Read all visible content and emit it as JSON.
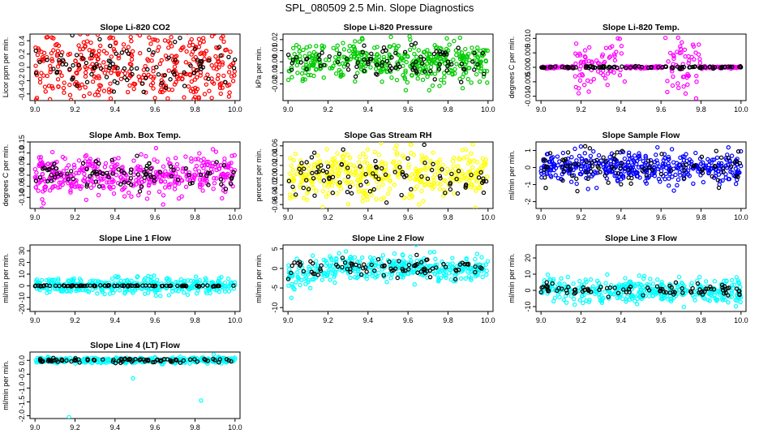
{
  "title": "SPL_080509  2.5 Min. Slope Diagnostics",
  "colors": {
    "red": "#ff0000",
    "green": "#00cc00",
    "magenta": "#ff00ff",
    "yellow": "#ffff00",
    "blue": "#0000ff",
    "cyan": "#00ffff",
    "black": "#000000"
  },
  "chart_data": [
    {
      "type": "scatter",
      "title": "Slope Li-820 CO2",
      "ylabel": "Licor ppm per min.",
      "xlim": [
        9.0,
        10.0
      ],
      "ylim": [
        -0.5,
        0.5
      ],
      "x_ticks": [
        "9.0",
        "9.2",
        "9.4",
        "9.6",
        "9.8",
        "10.0"
      ],
      "y_ticks": [
        -0.4,
        -0.2,
        0.0,
        0.2,
        0.4
      ],
      "y_tick_labels": [
        "-0.4",
        "-0.2",
        "0.0",
        "0.2",
        "0.4"
      ],
      "series": [
        {
          "color": "red",
          "n": 420,
          "x_range": [
            9.0,
            10.0
          ],
          "spread": 0.3
        },
        {
          "color": "black",
          "n": 90,
          "x_range": [
            9.0,
            10.0
          ],
          "spread": 0.2
        }
      ]
    },
    {
      "type": "scatter",
      "title": "Slope Li-820 Pressure",
      "ylabel": "kPa per min.",
      "xlim": [
        9.0,
        10.0
      ],
      "ylim": [
        -0.035,
        0.025
      ],
      "x_ticks": [
        "9.0",
        "9.2",
        "9.4",
        "9.6",
        "9.8",
        "10.0"
      ],
      "y_ticks": [
        -0.02,
        -0.01,
        0.0,
        0.01,
        0.02
      ],
      "y_tick_labels": [
        "-0.02",
        "-0.01",
        "0.00",
        "0.01",
        "0.02"
      ],
      "series": [
        {
          "color": "green",
          "n": 420,
          "x_range": [
            9.0,
            10.0
          ],
          "spread": 0.009
        },
        {
          "color": "black",
          "n": 90,
          "x_range": [
            9.0,
            10.0
          ],
          "spread": 0.007
        }
      ]
    },
    {
      "type": "scatter",
      "title": "Slope Li-820 Temp.",
      "ylabel": "degrees C per min.",
      "xlim": [
        9.0,
        10.0
      ],
      "ylim": [
        -0.0115,
        0.0115
      ],
      "x_ticks": [
        "9.0",
        "9.2",
        "9.4",
        "9.6",
        "9.8",
        "10.0"
      ],
      "y_ticks": [
        -0.01,
        -0.005,
        0.0,
        0.005,
        0.01
      ],
      "y_tick_labels": [
        "-0.010",
        "-0.005",
        "0.000",
        "0.005",
        "0.010"
      ],
      "series": [
        {
          "color": "magenta",
          "n": 300,
          "x_range": [
            9.0,
            10.0
          ],
          "spread": 0.0002,
          "bursts": [
            [
              9.17,
              9.42,
              0.0045
            ],
            [
              9.62,
              9.8,
              0.0045
            ]
          ]
        },
        {
          "color": "black",
          "n": 90,
          "x_range": [
            9.0,
            10.0
          ],
          "spread": 0.0002
        }
      ]
    },
    {
      "type": "scatter",
      "title": "Slope Amb. Box Temp.",
      "ylabel": "degrees C per min.",
      "xlim": [
        9.0,
        10.0
      ],
      "ylim": [
        -0.15,
        0.15
      ],
      "x_ticks": [
        "9.0",
        "9.2",
        "9.4",
        "9.6",
        "9.8",
        "10.0"
      ],
      "y_ticks": [
        -0.1,
        -0.05,
        0.0,
        0.05,
        0.1,
        0.15
      ],
      "y_tick_labels": [
        "-0.10",
        "-0.05",
        "0.00",
        "0.05",
        "0.10",
        "0.15"
      ],
      "series": [
        {
          "color": "magenta",
          "n": 420,
          "x_range": [
            9.0,
            10.0
          ],
          "spread": 0.045
        },
        {
          "color": "black",
          "n": 90,
          "x_range": [
            9.0,
            10.0
          ],
          "spread": 0.035
        }
      ]
    },
    {
      "type": "scatter",
      "title": "Slope Gas Stream RH",
      "ylabel": "percent per min.",
      "xlim": [
        9.0,
        10.0
      ],
      "ylim": [
        -0.068,
        0.068
      ],
      "x_ticks": [
        "9.0",
        "9.2",
        "9.4",
        "9.6",
        "9.8",
        "10.0"
      ],
      "y_ticks": [
        -0.06,
        -0.04,
        -0.02,
        0.0,
        0.02,
        0.04,
        0.06
      ],
      "y_tick_labels": [
        "-0.06",
        "-0.04",
        "-0.02",
        "0.00",
        "0.02",
        "0.04",
        "0.06"
      ],
      "series": [
        {
          "color": "yellow",
          "n": 420,
          "x_range": [
            9.0,
            10.0
          ],
          "spread": 0.025
        },
        {
          "color": "black",
          "n": 90,
          "x_range": [
            9.0,
            10.0
          ],
          "spread": 0.022
        }
      ]
    },
    {
      "type": "scatter",
      "title": "Slope Sample Flow",
      "ylabel": "ml/min per min.",
      "xlim": [
        9.0,
        10.0
      ],
      "ylim": [
        -2.4,
        1.5
      ],
      "x_ticks": [
        "9.0",
        "9.2",
        "9.4",
        "9.6",
        "9.8",
        "10.0"
      ],
      "y_ticks": [
        -2,
        -1,
        0,
        1
      ],
      "y_tick_labels": [
        "-2",
        "-1",
        "0",
        "1"
      ],
      "series": [
        {
          "color": "blue",
          "n": 420,
          "x_range": [
            9.0,
            10.0
          ],
          "spread": 0.45
        },
        {
          "color": "black",
          "n": 90,
          "x_range": [
            9.0,
            10.0
          ],
          "spread": 0.55
        }
      ]
    },
    {
      "type": "scatter",
      "title": "Slope Line 1 Flow",
      "ylabel": "ml/min per min.",
      "xlim": [
        9.0,
        10.0
      ],
      "ylim": [
        -22,
        35
      ],
      "x_ticks": [
        "9.0",
        "9.2",
        "9.4",
        "9.6",
        "9.8",
        "10.0"
      ],
      "y_ticks": [
        -20,
        -10,
        0,
        10,
        20,
        30
      ],
      "y_tick_labels": [
        "-20",
        "-10",
        "0",
        "10",
        "20",
        "30"
      ],
      "series": [
        {
          "color": "cyan",
          "n": 380,
          "x_range": [
            9.0,
            10.0
          ],
          "spread": 3.5
        },
        {
          "color": "black",
          "n": 90,
          "x_range": [
            9.0,
            10.0
          ],
          "spread": 0.2
        }
      ]
    },
    {
      "type": "scatter",
      "title": "Slope Line 2 Flow",
      "ylabel": "ml/min per min.",
      "xlim": [
        9.0,
        10.0
      ],
      "ylim": [
        -11,
        6
      ],
      "x_ticks": [
        "9.0",
        "9.2",
        "9.4",
        "9.6",
        "9.8",
        "10.0"
      ],
      "y_ticks": [
        -10,
        -5,
        0,
        5
      ],
      "y_tick_labels": [
        "-10",
        "-5",
        "0",
        "5"
      ],
      "series": [
        {
          "color": "cyan",
          "n": 380,
          "x_range": [
            9.0,
            10.0
          ],
          "spread": 1.6,
          "ramp": [
            9.0,
            9.2,
            -6
          ]
        },
        {
          "color": "black",
          "n": 90,
          "x_range": [
            9.0,
            10.0
          ],
          "spread": 1.2
        }
      ]
    },
    {
      "type": "scatter",
      "title": "Slope Line 3 Flow",
      "ylabel": "ml/min per min.",
      "xlim": [
        9.0,
        10.0
      ],
      "ylim": [
        -13,
        28
      ],
      "x_ticks": [
        "9.0",
        "9.2",
        "9.4",
        "9.6",
        "9.8",
        "10.0"
      ],
      "y_ticks": [
        -10,
        0,
        10,
        20
      ],
      "y_tick_labels": [
        "-10",
        "0",
        "10",
        "20"
      ],
      "series": [
        {
          "color": "cyan",
          "n": 380,
          "x_range": [
            9.0,
            10.0
          ],
          "spread": 3.5
        },
        {
          "color": "black",
          "n": 90,
          "x_range": [
            9.0,
            10.0
          ],
          "spread": 2.0
        }
      ]
    },
    {
      "type": "scatter",
      "title": "Slope Line 4 (LT) Flow",
      "ylabel": "ml/min per min.",
      "xlim": [
        9.0,
        10.0
      ],
      "ylim": [
        -2.1,
        0.3
      ],
      "x_ticks": [
        "9.0",
        "9.2",
        "9.4",
        "9.6",
        "9.8",
        "10.0"
      ],
      "y_ticks": [
        -2.0,
        -1.5,
        -1.0,
        -0.5,
        0.0
      ],
      "y_tick_labels": [
        "-2.0",
        "-1.5",
        "-1.0",
        "-0.5",
        "0.0"
      ],
      "series": [
        {
          "color": "cyan",
          "n": 380,
          "x_range": [
            9.0,
            10.0
          ],
          "spread": 0.05
        },
        {
          "color": "black",
          "n": 90,
          "x_range": [
            9.0,
            10.0
          ],
          "spread": 0.04
        }
      ],
      "outliers": [
        [
          9.17,
          -2.05
        ],
        [
          9.49,
          -0.65
        ],
        [
          9.83,
          -1.45
        ]
      ]
    }
  ]
}
